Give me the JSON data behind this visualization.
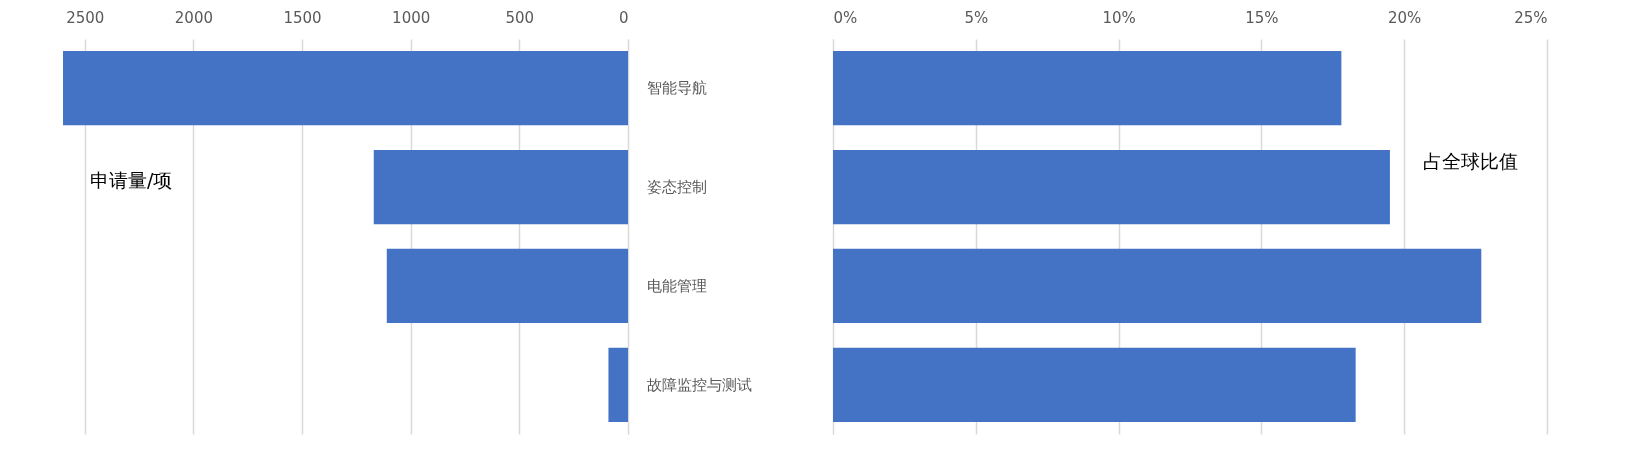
{
  "chart_data": [
    {
      "type": "bar",
      "orientation": "horizontal",
      "categories": [
        "智能导航",
        "姿态控制",
        "电能管理",
        "故障监控与测试"
      ],
      "values": [
        2600,
        1170,
        1110,
        90
      ],
      "color": "#4472c4",
      "xlim": [
        2600,
        0
      ],
      "xticks": [
        2500,
        2000,
        1500,
        1000,
        500,
        0
      ],
      "grid": "x",
      "annotations": [
        "申请量/项"
      ]
    },
    {
      "type": "bar",
      "orientation": "horizontal",
      "categories": [
        null,
        null,
        null,
        null
      ],
      "values": [
        17.8,
        19.5,
        22.7,
        18.3
      ],
      "color": "#4472c4",
      "xlim": [
        0,
        25
      ],
      "xticks": [
        {
          "value": 0,
          "label": "0%"
        },
        {
          "value": 5,
          "label": "5%"
        },
        {
          "value": 10,
          "label": "10%"
        },
        {
          "value": 15,
          "label": "15%"
        },
        {
          "value": 20,
          "label": "20%"
        },
        {
          "value": 25,
          "label": "25%"
        }
      ],
      "grid": "x",
      "annotations": [
        "占全球比值"
      ]
    }
  ]
}
